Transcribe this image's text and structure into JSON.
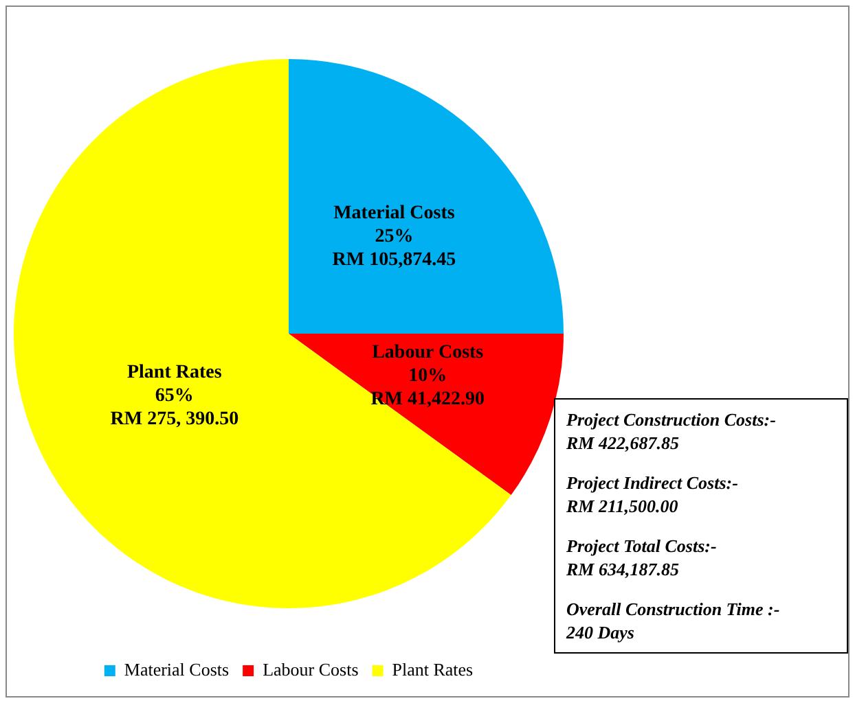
{
  "chart_data": {
    "type": "pie",
    "categories": [
      "Material Costs",
      "Labour Costs",
      "Plant Rates"
    ],
    "values": [
      25,
      10,
      65
    ],
    "colors": [
      "#00b0f0",
      "#ff0000",
      "#ffff00"
    ],
    "value_labels": [
      "25%\nRM 105,874.45",
      "10%\nRM 41,422.90",
      "65%\nRM 275, 390.50"
    ],
    "legend": "bottom",
    "annotations": [
      "Project Construction Costs:-\nRM 422,687.85",
      "Project Indirect Costs:-\nRM 211,500.00",
      "Project Total Costs:-\nRM 634,187.85",
      "Overall Construction Time :-\n240 Days"
    ]
  }
}
